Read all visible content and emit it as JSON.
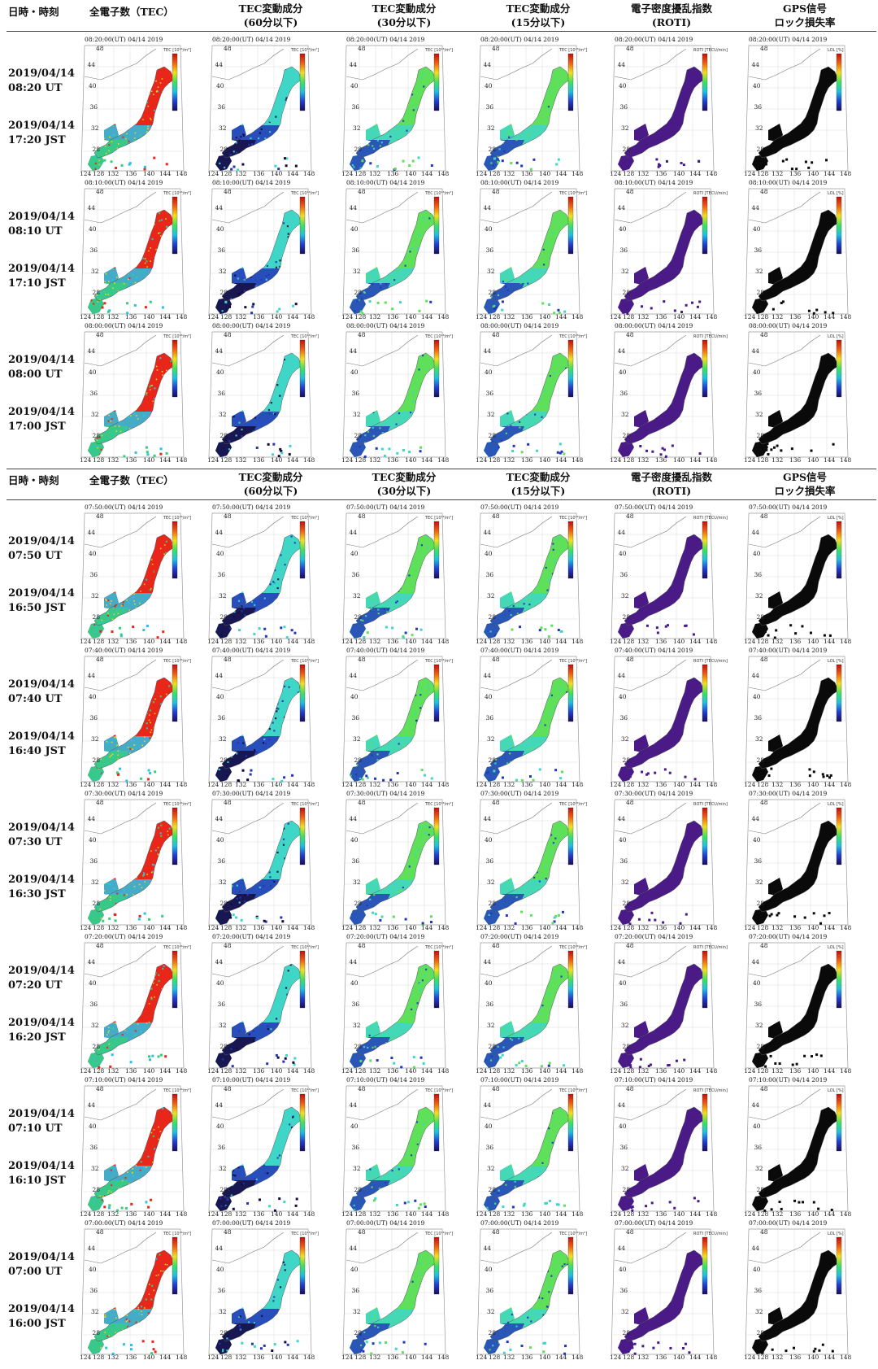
{
  "header": {
    "date_col": "日時・時刻",
    "columns": [
      {
        "line1": "全電子数（TEC）",
        "line2": ""
      },
      {
        "line1": "TEC変動成分",
        "line2": "(60分以下)"
      },
      {
        "line1": "TEC変動成分",
        "line2": "(30分以下)"
      },
      {
        "line1": "TEC変動成分",
        "line2": "(15分以下)"
      },
      {
        "line1": "電子密度擾乱指数",
        "line2": "(ROTI)"
      },
      {
        "line1": "GPS信号",
        "line2": "ロック損失率"
      }
    ]
  },
  "map": {
    "lat_ticks": [
      "48",
      "44",
      "40",
      "36",
      "32",
      "28"
    ],
    "lon_ticks": [
      "124",
      "128",
      "132",
      "136",
      "140",
      "144",
      "148"
    ]
  },
  "colorbars": [
    {
      "label": "TEC [10¹⁶/m²]",
      "scale": "rainbow"
    },
    {
      "label": "TEC [10¹⁶/m²]",
      "scale": "rainbow"
    },
    {
      "label": "TEC [10¹⁶/m²]",
      "scale": "rainbow"
    },
    {
      "label": "TEC [10¹⁶/m²]",
      "scale": "rainbow"
    },
    {
      "label": "ROTI [TECU/min]",
      "scale": "rainbow"
    },
    {
      "label": "LOL [%]",
      "scale": "rainbow"
    }
  ],
  "colors": {
    "tec_high": "#e8261a",
    "tec_mid": "#28c4e8",
    "tec_low": "#33d07a",
    "var_cyan": "#3fd6c8",
    "var_green": "#5ee05a",
    "var_blue": "#2436b8",
    "var_dark": "#150a38",
    "roti": "#4a1a86",
    "lol": "#0a0a0a",
    "grid": "#9a9a9a",
    "coast": "#777777"
  },
  "rows": [
    {
      "utc_date": "2019/04/14",
      "utc_time": "08:20 UT",
      "jst_date": "2019/04/14",
      "jst_time": "17:20 JST",
      "panel_title": "08:20:00(UT)  04/14 2019"
    },
    {
      "utc_date": "2019/04/14",
      "utc_time": "08:10 UT",
      "jst_date": "2019/04/14",
      "jst_time": "17:10 JST",
      "panel_title": "08:10:00(UT)  04/14 2019"
    },
    {
      "utc_date": "2019/04/14",
      "utc_time": "08:00 UT",
      "jst_date": "2019/04/14",
      "jst_time": "17:00 JST",
      "panel_title": "08:00:00(UT)  04/14 2019"
    },
    {
      "utc_date": "2019/04/14",
      "utc_time": "07:50 UT",
      "jst_date": "2019/04/14",
      "jst_time": "16:50 JST",
      "panel_title": "07:50:00(UT)  04/14 2019"
    },
    {
      "utc_date": "2019/04/14",
      "utc_time": "07:40 UT",
      "jst_date": "2019/04/14",
      "jst_time": "16:40 JST",
      "panel_title": "07:40:00(UT)  04/14 2019"
    },
    {
      "utc_date": "2019/04/14",
      "utc_time": "07:30 UT",
      "jst_date": "2019/04/14",
      "jst_time": "16:30 JST",
      "panel_title": "07:30:00(UT)  04/14 2019"
    },
    {
      "utc_date": "2019/04/14",
      "utc_time": "07:20 UT",
      "jst_date": "2019/04/14",
      "jst_time": "16:20 JST",
      "panel_title": "07:20:00(UT)  04/14 2019"
    },
    {
      "utc_date": "2019/04/14",
      "utc_time": "07:10 UT",
      "jst_date": "2019/04/14",
      "jst_time": "16:10 JST",
      "panel_title": "07:10:00(UT)  04/14 2019"
    },
    {
      "utc_date": "2019/04/14",
      "utc_time": "07:00 UT",
      "jst_date": "2019/04/14",
      "jst_time": "16:00 JST",
      "panel_title": "07:00:00(UT)  04/14 2019"
    }
  ]
}
